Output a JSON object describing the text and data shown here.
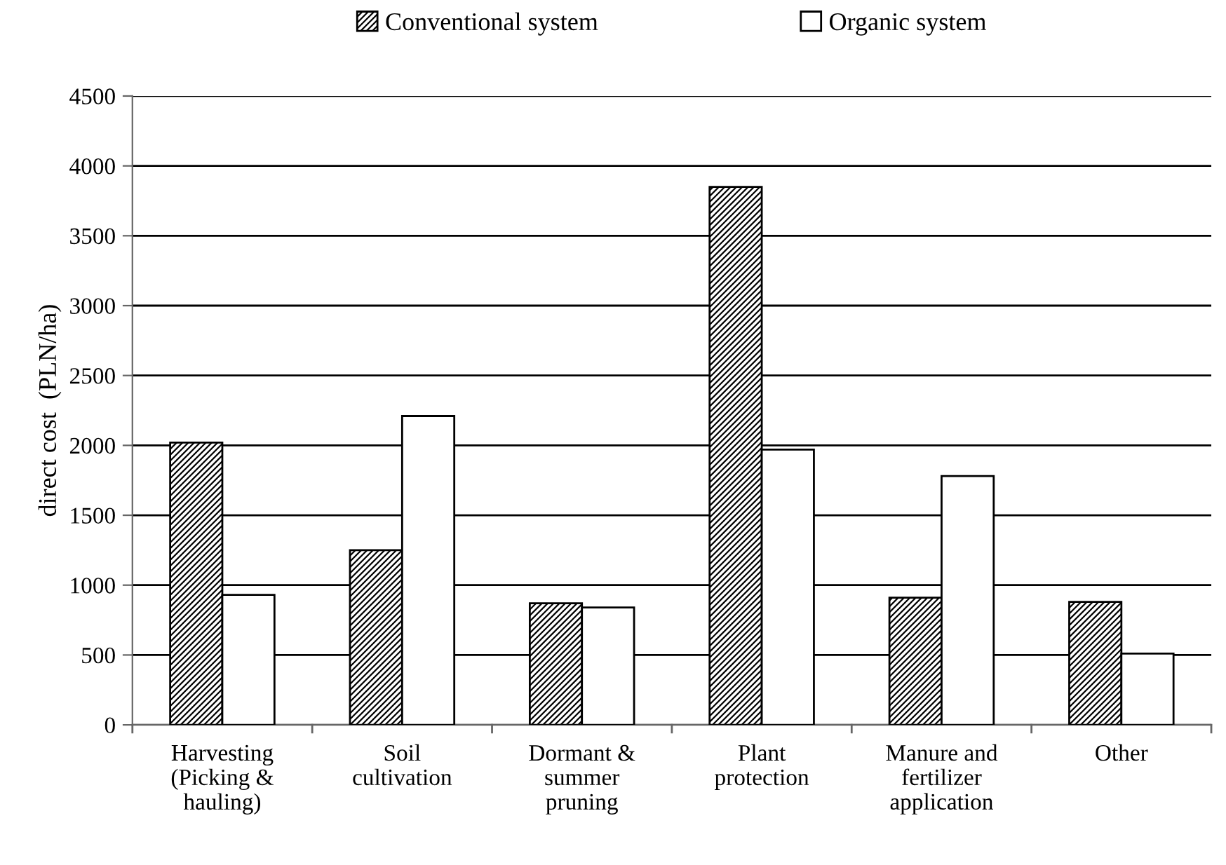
{
  "chart_data": {
    "type": "bar",
    "ylabel": "direct cost  (PLN/ha)",
    "categories": [
      "Harvesting\n(Picking &\nhauling)",
      "Soil\ncultivation",
      "Dormant &\nsummer\npruning",
      "Plant\nprotection",
      "Manure and\nfertilizer\napplication",
      "Other"
    ],
    "series": [
      {
        "name": "Conventional system",
        "color": "#000000",
        "values": [
          2020,
          1250,
          870,
          3850,
          910,
          880
        ]
      },
      {
        "name": "Organic system",
        "color": "#ffffff",
        "values": [
          930,
          2210,
          840,
          1970,
          1780,
          510
        ]
      }
    ],
    "ylim": [
      0,
      4500
    ],
    "yticks": [
      0,
      500,
      1000,
      1500,
      2000,
      2500,
      3000,
      3500,
      4000,
      4500
    ],
    "grid": "y",
    "legend": "top"
  }
}
